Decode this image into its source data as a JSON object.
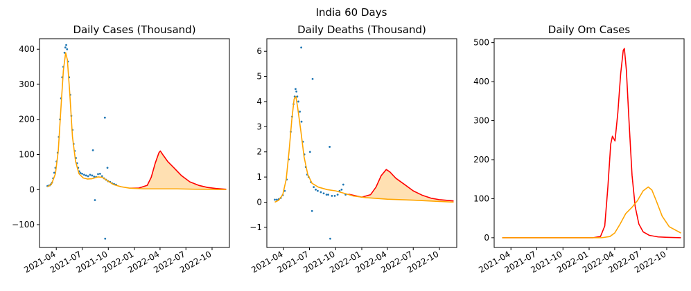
{
  "suptitle": "India 60 Days",
  "colors": {
    "orange": "#ffa500",
    "red": "#ff0000",
    "fill": "#ffe0b2",
    "scatter": "#1f77b4"
  },
  "chart_data": [
    {
      "type": "line",
      "title": "Daily Cases (Thousand)",
      "xlabel": "",
      "ylabel": "",
      "xlim": [
        "2021-02-01",
        "2022-12-01"
      ],
      "ylim": [
        -165,
        430
      ],
      "x_ticks": [
        "2021-04",
        "2021-07",
        "2021-10",
        "2022-01",
        "2022-04",
        "2022-07",
        "2022-10"
      ],
      "y_ticks": [
        -100,
        0,
        100,
        200,
        300,
        400
      ],
      "grid": false,
      "series": [
        {
          "kind": "scatter",
          "color": "#1f77b4",
          "points": [
            [
              "2021-03-01",
              10
            ],
            [
              "2021-03-05",
              11
            ],
            [
              "2021-03-09",
              12
            ],
            [
              "2021-03-13",
              15
            ],
            [
              "2021-03-17",
              20
            ],
            [
              "2021-03-21",
              32
            ],
            [
              "2021-03-25",
              48
            ],
            [
              "2021-03-29",
              62
            ],
            [
              "2021-04-02",
              80
            ],
            [
              "2021-04-06",
              105
            ],
            [
              "2021-04-10",
              150
            ],
            [
              "2021-04-14",
              200
            ],
            [
              "2021-04-18",
              260
            ],
            [
              "2021-04-22",
              320
            ],
            [
              "2021-04-26",
              350
            ],
            [
              "2021-04-30",
              390
            ],
            [
              "2021-05-03",
              405
            ],
            [
              "2021-05-06",
              412
            ],
            [
              "2021-05-09",
              400
            ],
            [
              "2021-05-12",
              365
            ],
            [
              "2021-05-16",
              320
            ],
            [
              "2021-05-20",
              270
            ],
            [
              "2021-05-24",
              210
            ],
            [
              "2021-05-28",
              170
            ],
            [
              "2021-06-01",
              130
            ],
            [
              "2021-06-05",
              110
            ],
            [
              "2021-06-09",
              90
            ],
            [
              "2021-06-13",
              75
            ],
            [
              "2021-06-17",
              62
            ],
            [
              "2021-06-21",
              52
            ],
            [
              "2021-06-25",
              47
            ],
            [
              "2021-07-01",
              45
            ],
            [
              "2021-07-08",
              42
            ],
            [
              "2021-07-15",
              40
            ],
            [
              "2021-07-22",
              38
            ],
            [
              "2021-07-29",
              42
            ],
            [
              "2021-08-05",
              40
            ],
            [
              "2021-08-08",
              112
            ],
            [
              "2021-08-12",
              37
            ],
            [
              "2021-08-15",
              -30
            ],
            [
              "2021-08-19",
              36
            ],
            [
              "2021-08-26",
              44
            ],
            [
              "2021-09-02",
              45
            ],
            [
              "2021-09-09",
              38
            ],
            [
              "2021-09-16",
              32
            ],
            [
              "2021-09-19",
              205
            ],
            [
              "2021-09-20",
              -140
            ],
            [
              "2021-09-23",
              28
            ],
            [
              "2021-09-28",
              62
            ],
            [
              "2021-09-30",
              24
            ],
            [
              "2021-10-07",
              22
            ],
            [
              "2021-10-14",
              18
            ],
            [
              "2021-10-21",
              16
            ],
            [
              "2021-10-28",
              14
            ]
          ]
        },
        {
          "name": "",
          "color": "#ffa500",
          "points": [
            [
              "2021-03-01",
              8
            ],
            [
              "2021-03-15",
              15
            ],
            [
              "2021-03-29",
              45
            ],
            [
              "2021-04-08",
              110
            ],
            [
              "2021-04-18",
              240
            ],
            [
              "2021-04-26",
              340
            ],
            [
              "2021-05-04",
              390
            ],
            [
              "2021-05-10",
              370
            ],
            [
              "2021-05-18",
              280
            ],
            [
              "2021-05-28",
              150
            ],
            [
              "2021-06-08",
              80
            ],
            [
              "2021-06-20",
              45
            ],
            [
              "2021-07-05",
              33
            ],
            [
              "2021-07-20",
              30
            ],
            [
              "2021-08-05",
              31
            ],
            [
              "2021-08-25",
              36
            ],
            [
              "2021-09-10",
              35
            ],
            [
              "2021-09-30",
              24
            ],
            [
              "2021-10-20",
              14
            ],
            [
              "2021-11-15",
              8
            ],
            [
              "2021-12-15",
              4
            ],
            [
              "2022-02-01",
              2
            ],
            [
              "2022-04-01",
              2
            ],
            [
              "2022-06-01",
              2
            ],
            [
              "2022-08-01",
              1
            ],
            [
              "2022-10-01",
              0.5
            ],
            [
              "2022-11-20",
              0
            ]
          ]
        },
        {
          "name": "",
          "color": "#ff0000",
          "points": [
            [
              "2021-12-15",
              4
            ],
            [
              "2022-01-15",
              4
            ],
            [
              "2022-02-15",
              12
            ],
            [
              "2022-03-01",
              35
            ],
            [
              "2022-03-15",
              75
            ],
            [
              "2022-03-28",
              105
            ],
            [
              "2022-04-02",
              110
            ],
            [
              "2022-04-12",
              98
            ],
            [
              "2022-04-28",
              80
            ],
            [
              "2022-05-20",
              62
            ],
            [
              "2022-06-15",
              40
            ],
            [
              "2022-07-15",
              22
            ],
            [
              "2022-08-15",
              12
            ],
            [
              "2022-09-15",
              6
            ],
            [
              "2022-10-15",
              3
            ],
            [
              "2022-11-20",
              1
            ]
          ]
        }
      ]
    },
    {
      "type": "line",
      "title": "Daily Deaths (Thousand)",
      "xlabel": "",
      "ylabel": "",
      "xlim": [
        "2021-02-01",
        "2022-12-01"
      ],
      "ylim": [
        -1.8,
        6.5
      ],
      "x_ticks": [
        "2021-04",
        "2021-07",
        "2021-10",
        "2022-01",
        "2022-04",
        "2022-07",
        "2022-10"
      ],
      "y_ticks": [
        -1,
        0,
        1,
        2,
        3,
        4,
        5,
        6
      ],
      "grid": false,
      "series": [
        {
          "kind": "scatter",
          "color": "#1f77b4",
          "points": [
            [
              "2021-03-01",
              0.1
            ],
            [
              "2021-03-08",
              0.1
            ],
            [
              "2021-03-15",
              0.12
            ],
            [
              "2021-03-22",
              0.17
            ],
            [
              "2021-03-29",
              0.28
            ],
            [
              "2021-04-05",
              0.45
            ],
            [
              "2021-04-12",
              0.9
            ],
            [
              "2021-04-19",
              1.7
            ],
            [
              "2021-04-26",
              2.8
            ],
            [
              "2021-05-01",
              3.4
            ],
            [
              "2021-05-06",
              3.9
            ],
            [
              "2021-05-10",
              4.2
            ],
            [
              "2021-05-13",
              4.5
            ],
            [
              "2021-05-16",
              4.4
            ],
            [
              "2021-05-19",
              4.2
            ],
            [
              "2021-05-23",
              4.0
            ],
            [
              "2021-05-28",
              3.6
            ],
            [
              "2021-06-02",
              6.15
            ],
            [
              "2021-06-03",
              3.2
            ],
            [
              "2021-06-08",
              2.4
            ],
            [
              "2021-06-13",
              1.9
            ],
            [
              "2021-06-18",
              1.4
            ],
            [
              "2021-06-23",
              1.1
            ],
            [
              "2021-06-28",
              1.0
            ],
            [
              "2021-07-03",
              2.0
            ],
            [
              "2021-07-06",
              0.8
            ],
            [
              "2021-07-10",
              -0.35
            ],
            [
              "2021-07-12",
              4.9
            ],
            [
              "2021-07-16",
              0.6
            ],
            [
              "2021-07-23",
              0.5
            ],
            [
              "2021-07-30",
              0.45
            ],
            [
              "2021-08-10",
              0.4
            ],
            [
              "2021-08-20",
              0.35
            ],
            [
              "2021-08-30",
              0.3
            ],
            [
              "2021-09-05",
              0.3
            ],
            [
              "2021-09-10",
              2.2
            ],
            [
              "2021-09-12",
              -1.45
            ],
            [
              "2021-09-18",
              0.25
            ],
            [
              "2021-09-28",
              0.25
            ],
            [
              "2021-10-08",
              0.3
            ],
            [
              "2021-10-15",
              0.45
            ],
            [
              "2021-10-22",
              0.5
            ],
            [
              "2021-10-28",
              0.7
            ],
            [
              "2021-11-05",
              0.3
            ]
          ]
        },
        {
          "name": "",
          "color": "#ffa500",
          "points": [
            [
              "2021-03-01",
              0.0
            ],
            [
              "2021-03-15",
              0.08
            ],
            [
              "2021-03-29",
              0.3
            ],
            [
              "2021-04-10",
              0.9
            ],
            [
              "2021-04-20",
              2.0
            ],
            [
              "2021-04-30",
              3.3
            ],
            [
              "2021-05-08",
              4.1
            ],
            [
              "2021-05-14",
              4.2
            ],
            [
              "2021-05-20",
              3.8
            ],
            [
              "2021-06-01",
              2.8
            ],
            [
              "2021-06-12",
              1.8
            ],
            [
              "2021-06-25",
              1.1
            ],
            [
              "2021-07-10",
              0.75
            ],
            [
              "2021-08-01",
              0.6
            ],
            [
              "2021-09-01",
              0.5
            ],
            [
              "2021-10-01",
              0.45
            ],
            [
              "2021-11-01",
              0.35
            ],
            [
              "2021-12-01",
              0.25
            ],
            [
              "2022-01-15",
              0.18
            ],
            [
              "2022-04-01",
              0.12
            ],
            [
              "2022-07-01",
              0.08
            ],
            [
              "2022-10-01",
              0.03
            ],
            [
              "2022-11-20",
              0.0
            ]
          ]
        },
        {
          "name": "",
          "color": "#ff0000",
          "points": [
            [
              "2021-11-15",
              0.32
            ],
            [
              "2022-01-01",
              0.2
            ],
            [
              "2022-02-01",
              0.3
            ],
            [
              "2022-02-20",
              0.6
            ],
            [
              "2022-03-10",
              1.05
            ],
            [
              "2022-03-28",
              1.3
            ],
            [
              "2022-04-10",
              1.2
            ],
            [
              "2022-05-01",
              0.95
            ],
            [
              "2022-06-01",
              0.7
            ],
            [
              "2022-07-01",
              0.45
            ],
            [
              "2022-08-01",
              0.28
            ],
            [
              "2022-09-01",
              0.16
            ],
            [
              "2022-10-01",
              0.1
            ],
            [
              "2022-11-20",
              0.05
            ]
          ]
        }
      ]
    },
    {
      "type": "line",
      "title": "Daily Om Cases",
      "xlabel": "",
      "ylabel": "",
      "xlim": [
        "2021-02-01",
        "2022-12-01"
      ],
      "ylim": [
        -25,
        510
      ],
      "x_ticks": [
        "2021-04",
        "2021-07",
        "2021-10",
        "2022-01",
        "2022-04",
        "2022-07",
        "2022-10"
      ],
      "y_ticks": [
        0,
        100,
        200,
        300,
        400,
        500
      ],
      "grid": false,
      "series": [
        {
          "name": "",
          "color": "#ff0000",
          "points": [
            [
              "2021-03-01",
              0
            ],
            [
              "2022-01-15",
              0
            ],
            [
              "2022-02-10",
              3
            ],
            [
              "2022-02-25",
              30
            ],
            [
              "2022-03-08",
              130
            ],
            [
              "2022-03-18",
              240
            ],
            [
              "2022-03-24",
              260
            ],
            [
              "2022-04-02",
              248
            ],
            [
              "2022-04-12",
              320
            ],
            [
              "2022-04-22",
              420
            ],
            [
              "2022-05-01",
              480
            ],
            [
              "2022-05-05",
              485
            ],
            [
              "2022-05-12",
              430
            ],
            [
              "2022-05-22",
              290
            ],
            [
              "2022-06-01",
              160
            ],
            [
              "2022-06-12",
              80
            ],
            [
              "2022-06-25",
              35
            ],
            [
              "2022-07-10",
              15
            ],
            [
              "2022-08-01",
              6
            ],
            [
              "2022-09-01",
              2
            ],
            [
              "2022-10-01",
              1
            ],
            [
              "2022-11-20",
              0
            ]
          ]
        },
        {
          "name": "",
          "color": "#ffa500",
          "points": [
            [
              "2021-03-01",
              0
            ],
            [
              "2022-02-15",
              0
            ],
            [
              "2022-03-15",
              3
            ],
            [
              "2022-04-01",
              12
            ],
            [
              "2022-04-20",
              35
            ],
            [
              "2022-05-10",
              62
            ],
            [
              "2022-06-01",
              78
            ],
            [
              "2022-06-20",
              95
            ],
            [
              "2022-07-10",
              120
            ],
            [
              "2022-07-28",
              130
            ],
            [
              "2022-08-10",
              122
            ],
            [
              "2022-08-25",
              95
            ],
            [
              "2022-09-15",
              55
            ],
            [
              "2022-10-10",
              28
            ],
            [
              "2022-11-20",
              12
            ]
          ]
        }
      ]
    }
  ]
}
